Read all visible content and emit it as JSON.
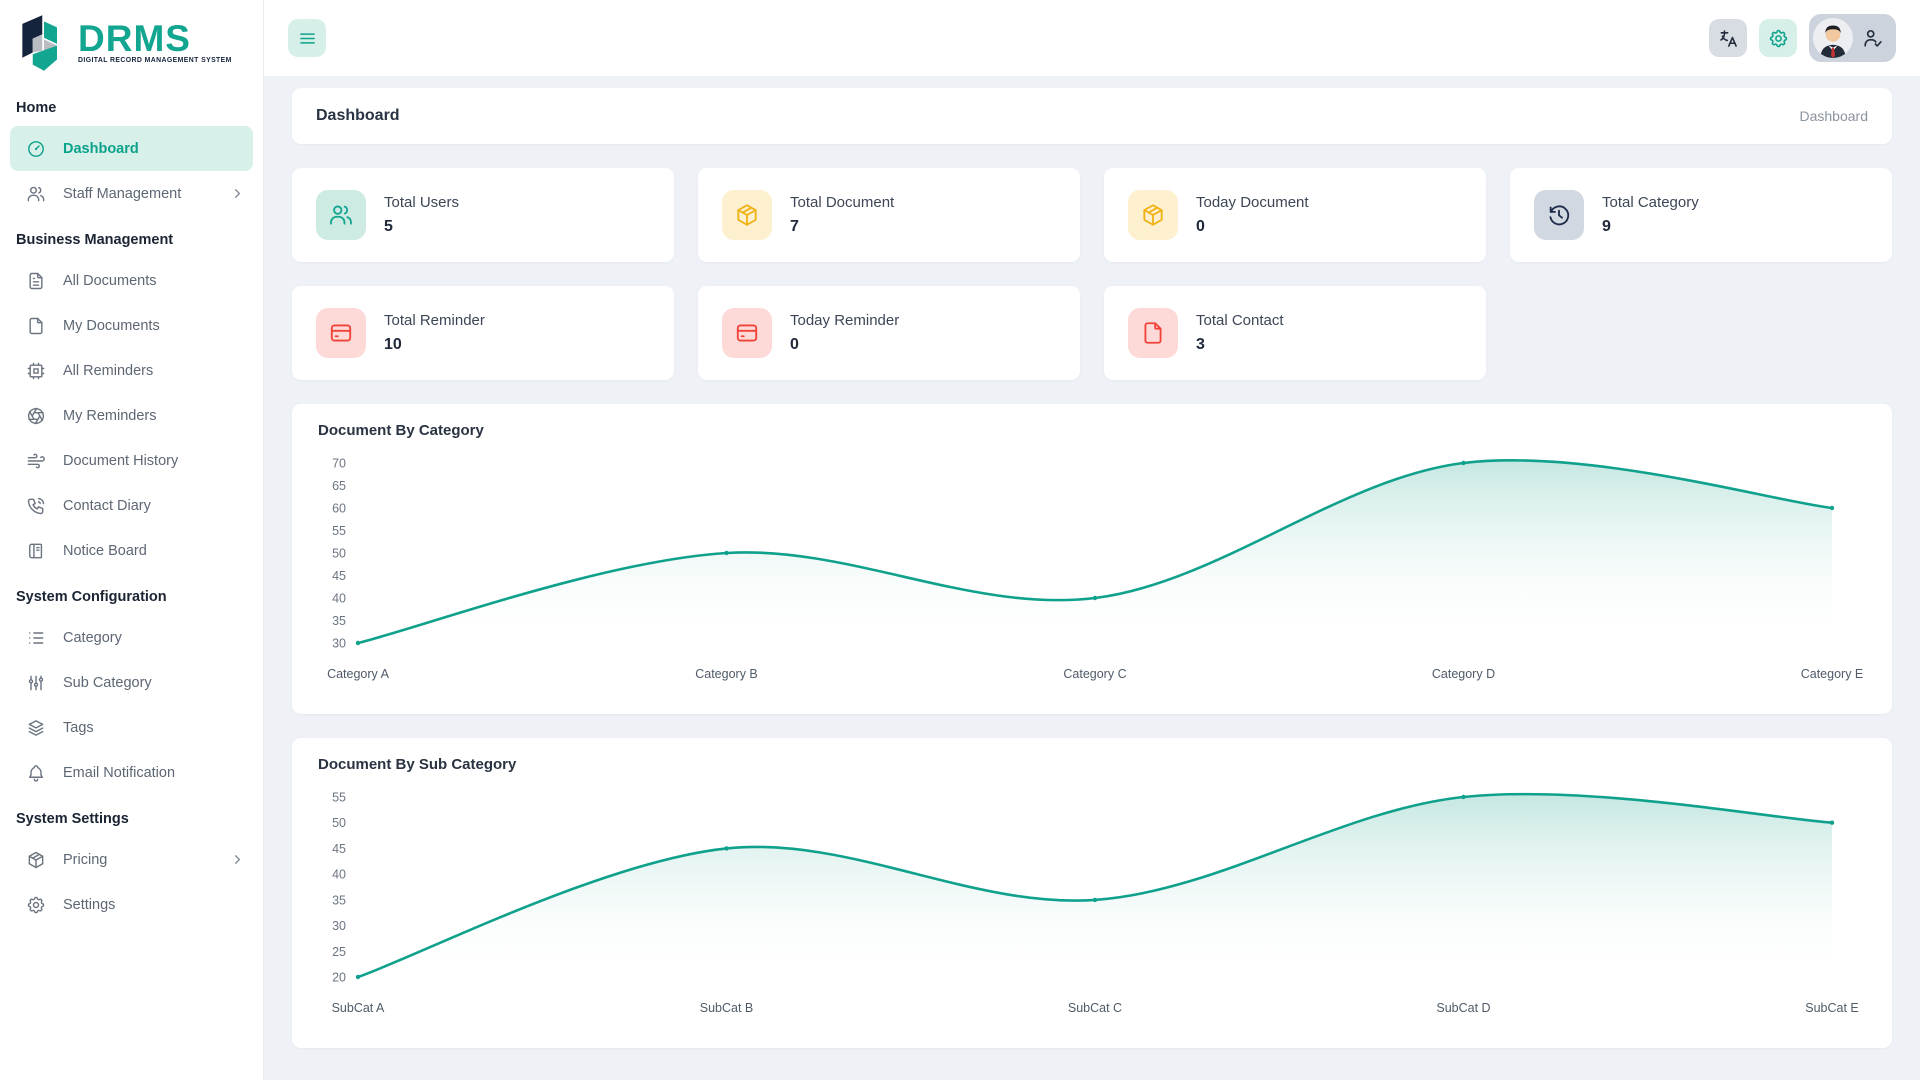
{
  "brand": {
    "name": "DRMS",
    "tagline": "DIGITAL RECORD MANAGEMENT SYSTEM"
  },
  "topbar": {
    "breadcrumb_left": "Dashboard",
    "breadcrumb_right": "Dashboard",
    "icons": [
      "menu-icon",
      "language-icon",
      "gear-icon",
      "avatar",
      "user-check-icon"
    ]
  },
  "colors": {
    "accent_teal": "#0da28b",
    "active_item_bg": "#d7f0ea",
    "amber": "#f0b113",
    "navy": "#1c2b4a",
    "red": "#f04339",
    "page_bg": "#eef1f6"
  },
  "sidebar": {
    "sections": [
      {
        "header": "Home",
        "items": [
          {
            "label": "Dashboard",
            "icon": "gauge-icon",
            "active": true
          },
          {
            "label": "Staff Management",
            "icon": "users-icon",
            "chevron": true
          }
        ]
      },
      {
        "header": "Business Management",
        "items": [
          {
            "label": "All Documents",
            "icon": "file-text-icon"
          },
          {
            "label": "My Documents",
            "icon": "file-icon"
          },
          {
            "label": "All Reminders",
            "icon": "cpu-icon"
          },
          {
            "label": "My Reminders",
            "icon": "aperture-icon"
          },
          {
            "label": "Document History",
            "icon": "wind-icon"
          },
          {
            "label": "Contact Diary",
            "icon": "phone-call-icon"
          },
          {
            "label": "Notice Board",
            "icon": "notebook-icon"
          }
        ]
      },
      {
        "header": "System Configuration",
        "items": [
          {
            "label": "Category",
            "icon": "list-icon"
          },
          {
            "label": "Sub Category",
            "icon": "sliders-icon"
          },
          {
            "label": "Tags",
            "icon": "layers-icon"
          },
          {
            "label": "Email Notification",
            "icon": "bell-icon"
          }
        ]
      },
      {
        "header": "System Settings",
        "items": [
          {
            "label": "Pricing",
            "icon": "package-icon",
            "chevron": true
          },
          {
            "label": "Settings",
            "icon": "gear-icon"
          }
        ]
      }
    ]
  },
  "stats": [
    {
      "label": "Total Users",
      "value": "5",
      "icon": "users-icon",
      "theme": "teal"
    },
    {
      "label": "Total Document",
      "value": "7",
      "icon": "package-icon",
      "theme": "amber"
    },
    {
      "label": "Today Document",
      "value": "0",
      "icon": "package-icon",
      "theme": "amber"
    },
    {
      "label": "Total Category",
      "value": "9",
      "icon": "history-icon",
      "theme": "gray"
    },
    {
      "label": "Total Reminder",
      "value": "10",
      "icon": "credit-card-icon",
      "theme": "red"
    },
    {
      "label": "Today Reminder",
      "value": "0",
      "icon": "credit-card-icon",
      "theme": "red"
    },
    {
      "label": "Total Contact",
      "value": "3",
      "icon": "file-icon",
      "theme": "red"
    }
  ],
  "chart_data": [
    {
      "type": "area",
      "title": "Document By Category",
      "categories": [
        "Category A",
        "Category B",
        "Category C",
        "Category D",
        "Category E"
      ],
      "values": [
        30,
        50,
        40,
        70,
        60
      ],
      "ylim": [
        30,
        70
      ],
      "ytick_step": 5,
      "xlabel": "",
      "ylabel": "",
      "grid": false,
      "legend": "none",
      "line_color": "#10a18c",
      "fill_from": "#7fcabe",
      "fill_to": "#ffffff"
    },
    {
      "type": "area",
      "title": "Document By Sub Category",
      "categories": [
        "SubCat A",
        "SubCat B",
        "SubCat C",
        "SubCat D",
        "SubCat E"
      ],
      "values": [
        20,
        45,
        35,
        55,
        50
      ],
      "ylim": [
        20,
        55
      ],
      "ytick_step": 5,
      "xlabel": "",
      "ylabel": "",
      "grid": false,
      "legend": "none",
      "line_color": "#10a18c",
      "fill_from": "#7fcabe",
      "fill_to": "#ffffff"
    }
  ]
}
